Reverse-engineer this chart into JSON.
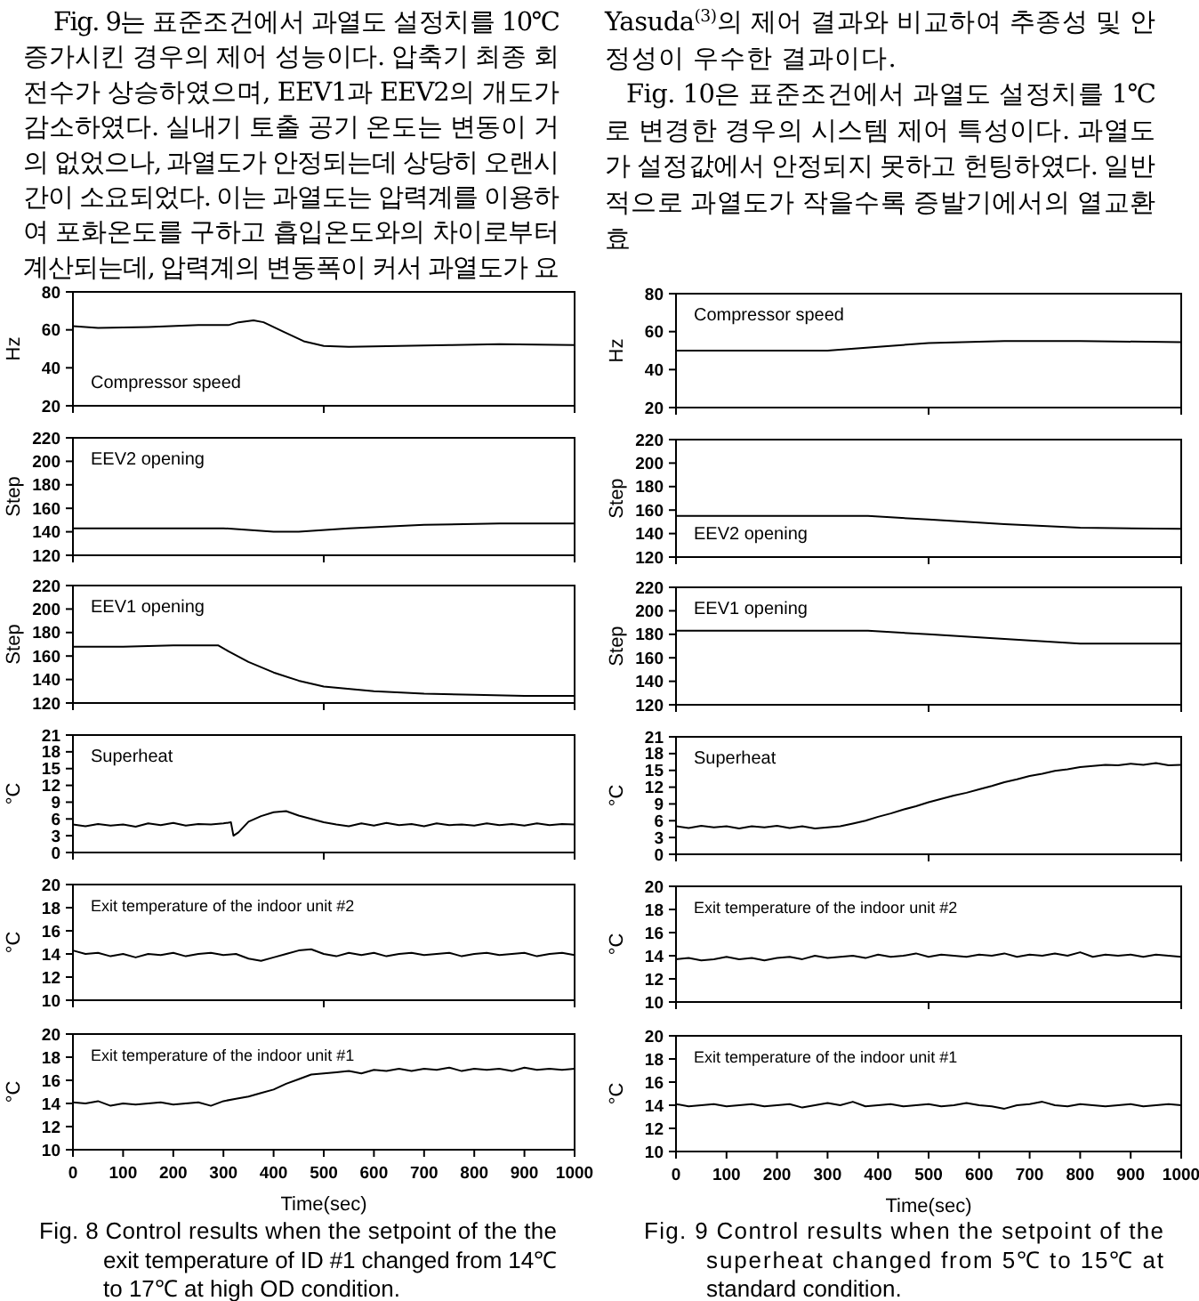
{
  "chart_data": [
    {
      "type": "line",
      "title": "Compressor speed",
      "ylabel": "Hz",
      "color": "#000000",
      "xlim": [
        0,
        1000
      ],
      "ylim": [
        20,
        80
      ],
      "yticks": [
        20,
        40,
        60,
        80
      ],
      "xticks": [
        {
          "value": 0,
          "label": null
        },
        {
          "value": 500,
          "label": null
        },
        {
          "value": 1000,
          "label": null
        }
      ],
      "tick_labels": "y",
      "x": [
        0,
        50,
        150,
        250,
        310,
        330,
        360,
        380,
        420,
        460,
        500,
        550,
        650,
        750,
        850,
        1000
      ],
      "values": [
        62,
        61,
        61.5,
        62.5,
        62.5,
        64,
        65,
        64,
        59,
        54,
        51.5,
        51,
        51.5,
        52,
        52.5,
        52
      ],
      "annotations": [
        "Fig. 9는 표준조건에서 과열도 설정치를 10℃",
        "증가시킨 경우의 제어 성능이다. 압축기 최종 회",
        "전수가 상승하였으며, EEV1과 EEV2의 개도가",
        "감소하였다. 실내기 토출 공기 온도는 변동이 거",
        "의 없었으나, 과열도가 안정되는데 상당히 오랜시",
        "간이 소요되었다. 이는 과열도는 압력계를 이용하",
        "여 포화온도를 구하고 흡입온도와의 차이로부터",
        "계산되는데, 압력계의 변동폭이 커서 과열도가 요"
      ]
    },
    {
      "type": "line",
      "title": "EEV2 opening",
      "ylabel": "Step",
      "color": "#000000",
      "xlim": [
        0,
        1000
      ],
      "ylim": [
        120,
        220
      ],
      "yticks": [
        120,
        140,
        160,
        180,
        200,
        220
      ],
      "xticks": [
        {
          "value": 0,
          "label": null
        },
        {
          "value": 500,
          "label": null
        },
        {
          "value": 1000,
          "label": null
        }
      ],
      "tick_labels": "y",
      "x": [
        0,
        300,
        400,
        450,
        550,
        700,
        850,
        1000
      ],
      "values": [
        143,
        143,
        140,
        140,
        143,
        146,
        147,
        147
      ]
    },
    {
      "type": "line",
      "title": "EEV1 opening",
      "ylabel": "Step",
      "color": "#000000",
      "xlim": [
        0,
        1000
      ],
      "ylim": [
        120,
        220
      ],
      "yticks": [
        120,
        140,
        160,
        180,
        200,
        220
      ],
      "xticks": [
        {
          "value": 0,
          "label": null
        },
        {
          "value": 500,
          "label": null
        },
        {
          "value": 1000,
          "label": null
        }
      ],
      "tick_labels": "y",
      "x": [
        0,
        100,
        200,
        290,
        310,
        350,
        400,
        450,
        500,
        600,
        700,
        800,
        900,
        1000
      ],
      "values": [
        168,
        168,
        169,
        169,
        164,
        155,
        146,
        139,
        134,
        130,
        128,
        127,
        126,
        126
      ]
    },
    {
      "type": "line",
      "title": "Superheat",
      "ylabel": "°C",
      "color": "#000000",
      "xlim": [
        0,
        1000
      ],
      "ylim": [
        0,
        21
      ],
      "yticks": [
        0,
        3,
        6,
        9,
        12,
        15,
        18,
        21
      ],
      "xticks": [
        {
          "value": 0,
          "label": null
        },
        {
          "value": 500,
          "label": null
        },
        {
          "value": 1000,
          "label": null
        }
      ],
      "tick_labels": "y",
      "x": [
        0,
        25,
        50,
        75,
        100,
        125,
        150,
        175,
        200,
        225,
        250,
        275,
        300,
        315,
        320,
        330,
        350,
        375,
        400,
        425,
        450,
        475,
        500,
        525,
        550,
        575,
        600,
        625,
        650,
        675,
        700,
        725,
        750,
        775,
        800,
        825,
        850,
        875,
        900,
        925,
        950,
        975,
        1000
      ],
      "values": [
        5.0,
        4.7,
        5.1,
        4.8,
        5.0,
        4.6,
        5.2,
        4.9,
        5.3,
        4.8,
        5.1,
        5.0,
        5.2,
        5.4,
        3.0,
        3.6,
        5.5,
        6.5,
        7.2,
        7.4,
        6.6,
        6.0,
        5.4,
        5.0,
        4.7,
        5.2,
        4.8,
        5.3,
        4.9,
        5.1,
        4.7,
        5.2,
        4.9,
        5.0,
        4.8,
        5.2,
        4.9,
        5.1,
        4.8,
        5.2,
        4.9,
        5.1,
        5.0
      ]
    },
    {
      "type": "line",
      "title": "Exit temperature of the indoor unit #2",
      "ylabel": "°C",
      "color": "#000000",
      "xlim": [
        0,
        1000
      ],
      "ylim": [
        10,
        20
      ],
      "yticks": [
        10,
        12,
        14,
        16,
        18,
        20
      ],
      "xticks": [
        {
          "value": 0,
          "label": null
        },
        {
          "value": 500,
          "label": null
        },
        {
          "value": 1000,
          "label": null
        }
      ],
      "tick_labels": "y",
      "x": [
        0,
        25,
        50,
        75,
        100,
        125,
        150,
        175,
        200,
        225,
        250,
        275,
        300,
        325,
        350,
        375,
        400,
        425,
        450,
        475,
        500,
        525,
        550,
        575,
        600,
        625,
        650,
        675,
        700,
        725,
        750,
        775,
        800,
        825,
        850,
        875,
        900,
        925,
        950,
        975,
        1000
      ],
      "values": [
        14.3,
        14.0,
        14.1,
        13.8,
        14.0,
        13.7,
        14.0,
        13.9,
        14.1,
        13.8,
        14.0,
        14.1,
        13.9,
        14.0,
        13.6,
        13.4,
        13.7,
        14.0,
        14.3,
        14.4,
        14.0,
        13.8,
        14.1,
        13.9,
        14.1,
        13.8,
        14.0,
        14.1,
        13.9,
        14.0,
        14.1,
        13.8,
        14.0,
        14.1,
        13.9,
        14.0,
        14.1,
        13.8,
        14.0,
        14.1,
        13.9
      ]
    },
    {
      "type": "line",
      "title": "Exit temperature of the indoor unit #1",
      "ylabel": "°C",
      "xlabel": "Time(sec)",
      "color": "#000000",
      "xlim": [
        0,
        1000
      ],
      "ylim": [
        10,
        20
      ],
      "yticks": [
        10,
        12,
        14,
        16,
        18,
        20
      ],
      "xticks": [
        0,
        100,
        200,
        300,
        400,
        500,
        600,
        700,
        800,
        900,
        1000
      ],
      "x": [
        0,
        25,
        50,
        75,
        100,
        125,
        150,
        175,
        200,
        225,
        250,
        275,
        300,
        325,
        350,
        375,
        400,
        425,
        450,
        475,
        500,
        525,
        550,
        575,
        600,
        625,
        650,
        675,
        700,
        725,
        750,
        775,
        800,
        825,
        850,
        875,
        900,
        925,
        950,
        975,
        1000
      ],
      "values": [
        14.1,
        14.0,
        14.2,
        13.8,
        14.0,
        13.9,
        14.0,
        14.1,
        13.9,
        14.0,
        14.1,
        13.8,
        14.2,
        14.4,
        14.6,
        14.9,
        15.2,
        15.7,
        16.1,
        16.5,
        16.6,
        16.7,
        16.8,
        16.6,
        16.9,
        16.8,
        17.0,
        16.8,
        17.0,
        16.9,
        17.1,
        16.8,
        17.0,
        16.9,
        17.0,
        16.8,
        17.1,
        16.9,
        17.0,
        16.9,
        17.0
      ],
      "annotations": [
        "Fig. 8 Control results when the setpoint of the the",
        "exit temperature of ID #1 changed from 14℃",
        "to 17℃ at high OD condition."
      ]
    },
    {
      "type": "line",
      "title": "Compressor speed",
      "ylabel": "Hz",
      "color": "#000000",
      "xlim": [
        0,
        1000
      ],
      "ylim": [
        20,
        80
      ],
      "yticks": [
        20,
        40,
        60,
        80
      ],
      "xticks": [
        {
          "value": 0,
          "label": null
        },
        {
          "value": 500,
          "label": null
        },
        {
          "value": 1000,
          "label": null
        }
      ],
      "tick_labels": "y",
      "x": [
        0,
        300,
        400,
        500,
        650,
        800,
        1000
      ],
      "values": [
        50,
        50,
        52,
        54,
        55,
        55,
        54.5
      ],
      "annotations": [
        "Yasuda$^{(3)}$의 제어 결과와 비교하여 추종성 및 안",
        "정성이 우수한 결과이다.",
        "Fig. 10은 표준조건에서 과열도 설정치를 1℃",
        "로 변경한 경우의 시스템 제어 특성이다. 과열도",
        "가 설정값에서 안정되지 못하고 헌팅하였다. 일반",
        "적으로 과열도가 작을수록 증발기에서의 열교환",
        "효"
      ]
    },
    {
      "type": "line",
      "title": "EEV2 opening",
      "ylabel": "Step",
      "color": "#000000",
      "xlim": [
        0,
        1000
      ],
      "ylim": [
        120,
        220
      ],
      "yticks": [
        120,
        140,
        160,
        180,
        200,
        220
      ],
      "xticks": [
        {
          "value": 0,
          "label": null
        },
        {
          "value": 500,
          "label": null
        },
        {
          "value": 1000,
          "label": null
        }
      ],
      "tick_labels": "y",
      "x": [
        0,
        380,
        500,
        650,
        800,
        1000
      ],
      "values": [
        155,
        155,
        152,
        148,
        145,
        144
      ]
    },
    {
      "type": "line",
      "title": "EEV1 opening",
      "ylabel": "Step",
      "color": "#000000",
      "xlim": [
        0,
        1000
      ],
      "ylim": [
        120,
        220
      ],
      "yticks": [
        120,
        140,
        160,
        180,
        200,
        220
      ],
      "xticks": [
        {
          "value": 0,
          "label": null
        },
        {
          "value": 500,
          "label": null
        },
        {
          "value": 1000,
          "label": null
        }
      ],
      "tick_labels": "y",
      "x": [
        0,
        380,
        500,
        650,
        800,
        1000
      ],
      "values": [
        183,
        183,
        180,
        176,
        172,
        172
      ]
    },
    {
      "type": "line",
      "title": "Superheat",
      "ylabel": "°C",
      "color": "#000000",
      "xlim": [
        0,
        1000
      ],
      "ylim": [
        0,
        21
      ],
      "yticks": [
        0,
        3,
        6,
        9,
        12,
        15,
        18,
        21
      ],
      "xticks": [
        {
          "value": 0,
          "label": null
        },
        {
          "value": 500,
          "label": null
        },
        {
          "value": 1000,
          "label": null
        }
      ],
      "tick_labels": "y",
      "x": [
        0,
        25,
        50,
        75,
        100,
        125,
        150,
        175,
        200,
        225,
        250,
        275,
        300,
        325,
        350,
        375,
        400,
        425,
        450,
        475,
        500,
        525,
        550,
        575,
        600,
        625,
        650,
        675,
        700,
        725,
        750,
        775,
        800,
        825,
        850,
        875,
        900,
        925,
        950,
        975,
        1000
      ],
      "values": [
        5.0,
        4.7,
        5.1,
        4.8,
        5.0,
        4.6,
        5.0,
        4.8,
        5.1,
        4.7,
        5.0,
        4.6,
        4.8,
        5.0,
        5.5,
        6.0,
        6.7,
        7.3,
        8.0,
        8.6,
        9.3,
        9.9,
        10.5,
        11.0,
        11.6,
        12.2,
        12.9,
        13.4,
        14.0,
        14.4,
        14.9,
        15.2,
        15.6,
        15.8,
        16.0,
        15.9,
        16.2,
        16.0,
        16.3,
        15.9,
        16.0
      ]
    },
    {
      "type": "line",
      "title": "Exit temperature of the indoor unit #2",
      "ylabel": "°C",
      "color": "#000000",
      "xlim": [
        0,
        1000
      ],
      "ylim": [
        10,
        20
      ],
      "yticks": [
        10,
        12,
        14,
        16,
        18,
        20
      ],
      "xticks": [
        {
          "value": 0,
          "label": null
        },
        {
          "value": 500,
          "label": null
        },
        {
          "value": 1000,
          "label": null
        }
      ],
      "tick_labels": "y",
      "x": [
        0,
        25,
        50,
        75,
        100,
        125,
        150,
        175,
        200,
        225,
        250,
        275,
        300,
        325,
        350,
        375,
        400,
        425,
        450,
        475,
        500,
        525,
        550,
        575,
        600,
        625,
        650,
        675,
        700,
        725,
        750,
        775,
        800,
        825,
        850,
        875,
        900,
        925,
        950,
        975,
        1000
      ],
      "values": [
        13.7,
        13.8,
        13.6,
        13.7,
        13.9,
        13.7,
        13.8,
        13.6,
        13.8,
        13.9,
        13.7,
        14.0,
        13.8,
        13.9,
        14.0,
        13.8,
        14.1,
        13.9,
        14.0,
        14.2,
        13.9,
        14.1,
        14.0,
        13.9,
        14.1,
        14.0,
        14.2,
        13.9,
        14.1,
        14.0,
        14.2,
        14.0,
        14.3,
        13.9,
        14.1,
        14.0,
        14.1,
        13.9,
        14.1,
        14.0,
        13.9
      ]
    },
    {
      "type": "line",
      "title": "Exit temperature of the indoor unit #1",
      "ylabel": "°C",
      "xlabel": "Time(sec)",
      "color": "#000000",
      "xlim": [
        0,
        1000
      ],
      "ylim": [
        10,
        20
      ],
      "yticks": [
        10,
        12,
        14,
        16,
        18,
        20
      ],
      "xticks": [
        0,
        100,
        200,
        300,
        400,
        500,
        600,
        700,
        800,
        900,
        1000
      ],
      "x": [
        0,
        25,
        50,
        75,
        100,
        125,
        150,
        175,
        200,
        225,
        250,
        275,
        300,
        325,
        350,
        375,
        400,
        425,
        450,
        475,
        500,
        525,
        550,
        575,
        600,
        625,
        650,
        675,
        700,
        725,
        750,
        775,
        800,
        825,
        850,
        875,
        900,
        925,
        950,
        975,
        1000
      ],
      "values": [
        14.1,
        13.9,
        14.0,
        14.1,
        13.9,
        14.0,
        14.1,
        13.9,
        14.0,
        14.1,
        13.8,
        14.0,
        14.2,
        14.0,
        14.3,
        13.9,
        14.0,
        14.1,
        13.9,
        14.0,
        14.1,
        13.9,
        14.0,
        14.2,
        14.0,
        13.9,
        13.7,
        14.0,
        14.1,
        14.3,
        14.0,
        13.9,
        14.1,
        14.0,
        13.9,
        14.0,
        14.1,
        13.9,
        14.0,
        14.1,
        14.0
      ],
      "annotations": [
        "Fig. 9 Control results when the setpoint of the",
        "superheat changed from 5℃ to 15℃ at",
        "standard condition."
      ]
    }
  ]
}
